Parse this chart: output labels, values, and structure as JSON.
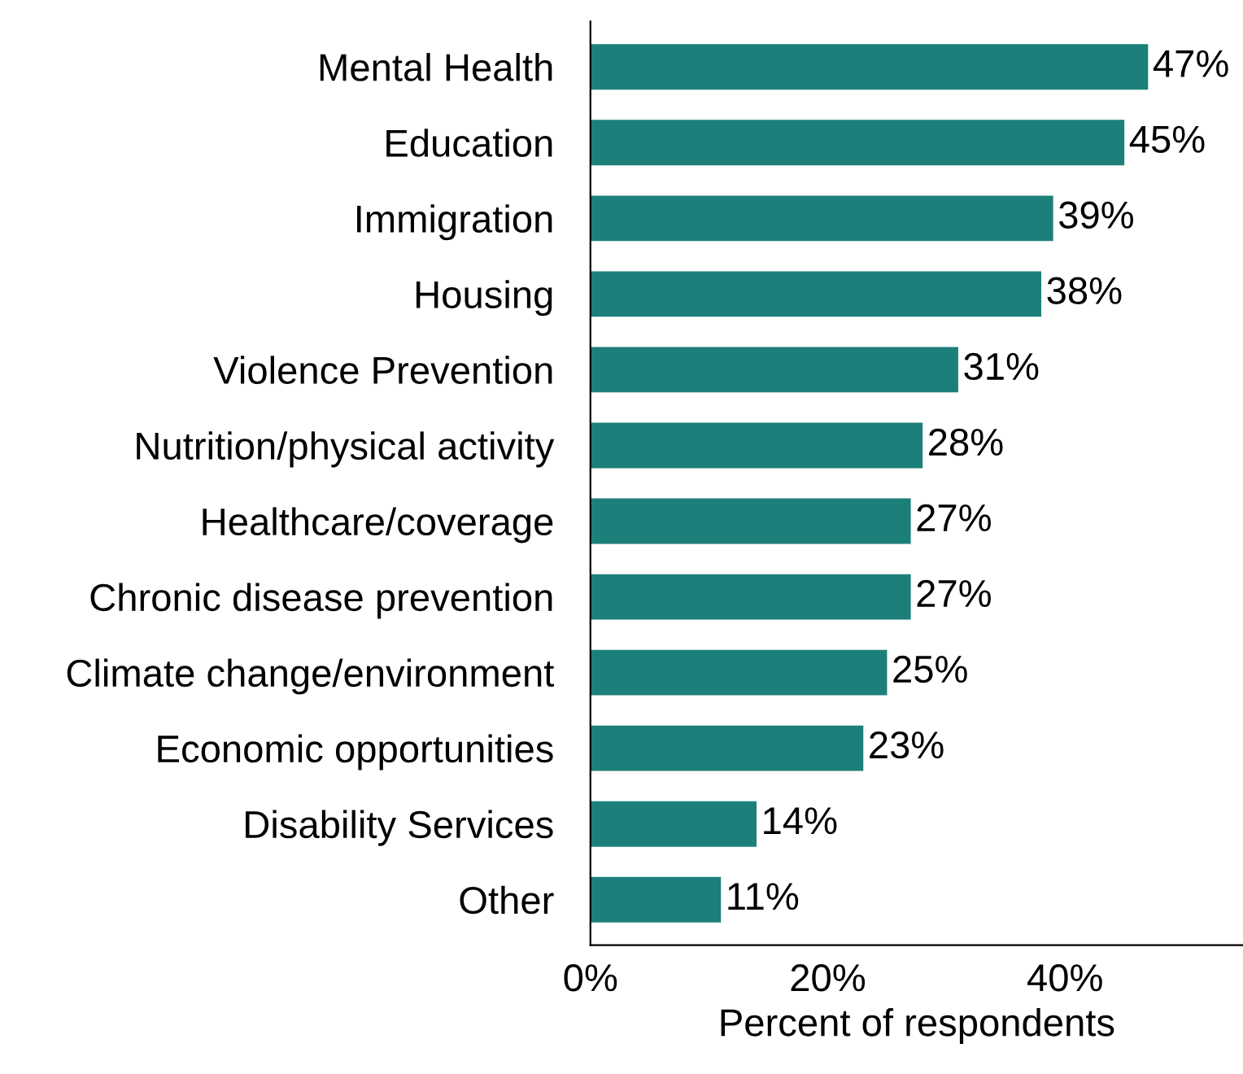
{
  "chart_data": {
    "type": "bar",
    "orientation": "horizontal",
    "xlabel": "Percent of respondents",
    "categories": [
      "Mental Health",
      "Education",
      "Immigration",
      "Housing",
      "Violence Prevention",
      "Nutrition/physical activity",
      "Healthcare/coverage",
      "Chronic disease prevention",
      "Climate change/environment",
      "Economic opportunities",
      "Disability Services",
      "Other"
    ],
    "values": [
      47,
      45,
      39,
      38,
      31,
      28,
      27,
      27,
      25,
      23,
      14,
      11
    ],
    "value_labels": [
      "47%",
      "45%",
      "39%",
      "38%",
      "31%",
      "28%",
      "27%",
      "27%",
      "25%",
      "23%",
      "14%",
      "11%"
    ],
    "color": "#1d7f79",
    "xlim": [
      0,
      55
    ],
    "xticks": [
      {
        "value": 0,
        "label": "0%"
      },
      {
        "value": 20,
        "label": "20%"
      },
      {
        "value": 40,
        "label": "40%"
      }
    ],
    "grid": false,
    "legend": false
  }
}
